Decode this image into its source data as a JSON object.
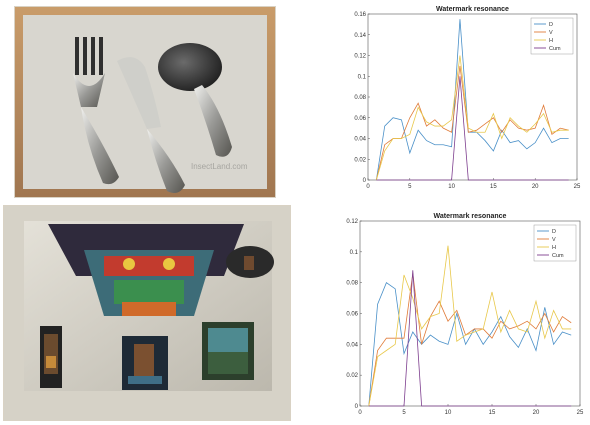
{
  "photos": [
    {
      "watermark": "InsectLand.com",
      "subject": "cutlery"
    },
    {
      "subject": "room"
    }
  ],
  "chart_data": [
    {
      "type": "line",
      "title": "Watermark resonance",
      "xlim": [
        0,
        25
      ],
      "ylim": [
        0,
        0.16
      ],
      "xticks": [
        0,
        5,
        10,
        15,
        20,
        25
      ],
      "yticks": [
        0,
        0.02,
        0.04,
        0.06,
        0.08,
        0.1,
        0.12,
        0.14,
        0.16
      ],
      "legend_position": "top-right",
      "x": [
        1,
        2,
        3,
        4,
        5,
        6,
        7,
        8,
        9,
        10,
        11,
        12,
        13,
        14,
        15,
        16,
        17,
        18,
        19,
        20,
        21,
        22,
        23,
        24
      ],
      "series": [
        {
          "name": "D",
          "color": "#4a90c8",
          "values": [
            0.0,
            0.052,
            0.06,
            0.058,
            0.026,
            0.048,
            0.038,
            0.034,
            0.034,
            0.032,
            0.155,
            0.046,
            0.046,
            0.038,
            0.028,
            0.048,
            0.036,
            0.038,
            0.03,
            0.036,
            0.05,
            0.036,
            0.04,
            0.04
          ]
        },
        {
          "name": "V",
          "color": "#e07b39",
          "values": [
            0.0,
            0.034,
            0.04,
            0.04,
            0.06,
            0.074,
            0.052,
            0.058,
            0.05,
            0.046,
            0.11,
            0.046,
            0.048,
            0.054,
            0.06,
            0.046,
            0.058,
            0.05,
            0.048,
            0.05,
            0.072,
            0.044,
            0.05,
            0.048
          ]
        },
        {
          "name": "H",
          "color": "#e8c84a",
          "values": [
            0.0,
            0.028,
            0.04,
            0.04,
            0.044,
            0.07,
            0.056,
            0.052,
            0.052,
            0.058,
            0.12,
            0.05,
            0.046,
            0.046,
            0.064,
            0.04,
            0.06,
            0.052,
            0.046,
            0.054,
            0.064,
            0.046,
            0.048,
            0.048
          ]
        },
        {
          "name": "Cum",
          "color": "#7e3f8f",
          "values": [
            0,
            0,
            0,
            0,
            0,
            0,
            0,
            0,
            0,
            0,
            0.1,
            0,
            0,
            0,
            0,
            0,
            0,
            0,
            0,
            0,
            0,
            0,
            0,
            0
          ]
        }
      ]
    },
    {
      "type": "line",
      "title": "Watermark resonance",
      "xlim": [
        0,
        25
      ],
      "ylim": [
        0,
        0.12
      ],
      "xticks": [
        0,
        5,
        10,
        15,
        20,
        25
      ],
      "yticks": [
        0,
        0.02,
        0.04,
        0.06,
        0.08,
        0.1,
        0.12
      ],
      "legend_position": "top-right",
      "x": [
        1,
        2,
        3,
        4,
        5,
        6,
        7,
        8,
        9,
        10,
        11,
        12,
        13,
        14,
        15,
        16,
        17,
        18,
        19,
        20,
        21,
        22,
        23,
        24
      ],
      "series": [
        {
          "name": "D",
          "color": "#4a90c8",
          "values": [
            0.0,
            0.066,
            0.08,
            0.076,
            0.034,
            0.048,
            0.04,
            0.046,
            0.042,
            0.04,
            0.06,
            0.04,
            0.05,
            0.04,
            0.048,
            0.058,
            0.045,
            0.038,
            0.05,
            0.036,
            0.064,
            0.04,
            0.048,
            0.046
          ]
        },
        {
          "name": "V",
          "color": "#e07b39",
          "values": [
            0.0,
            0.036,
            0.044,
            0.044,
            0.044,
            0.086,
            0.04,
            0.058,
            0.068,
            0.055,
            0.062,
            0.046,
            0.05,
            0.05,
            0.044,
            0.055,
            0.05,
            0.052,
            0.055,
            0.05,
            0.06,
            0.048,
            0.058,
            0.054
          ]
        },
        {
          "name": "H",
          "color": "#e8c84a",
          "values": [
            0.0,
            0.032,
            0.036,
            0.04,
            0.085,
            0.07,
            0.05,
            0.058,
            0.06,
            0.104,
            0.042,
            0.046,
            0.048,
            0.05,
            0.074,
            0.048,
            0.062,
            0.05,
            0.048,
            0.068,
            0.044,
            0.062,
            0.05,
            0.05
          ]
        },
        {
          "name": "Cum",
          "color": "#7e3f8f",
          "values": [
            0,
            0,
            0,
            0,
            0,
            0.088,
            0,
            0,
            0,
            0,
            0,
            0,
            0,
            0,
            0,
            0,
            0,
            0,
            0,
            0,
            0,
            0,
            0,
            0
          ]
        }
      ]
    }
  ]
}
